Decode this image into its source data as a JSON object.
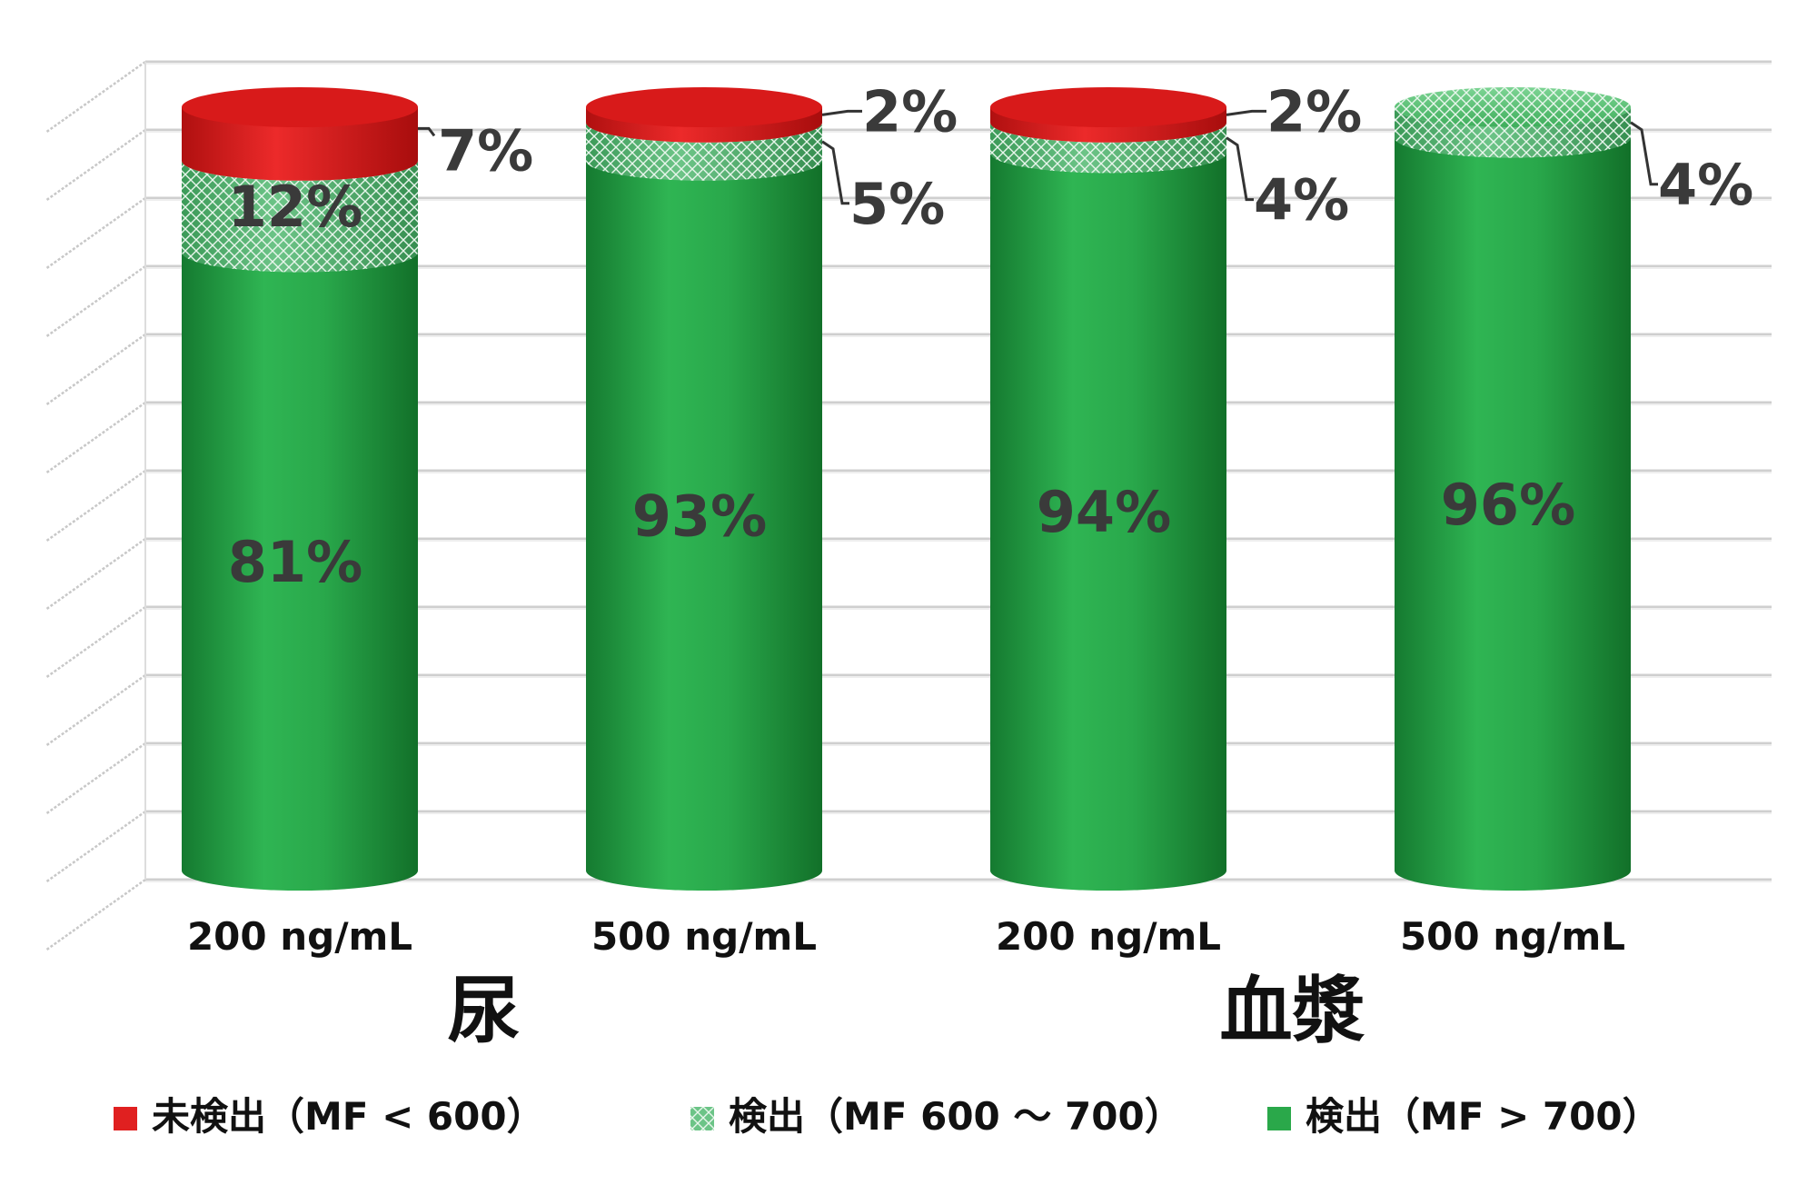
{
  "chart_data": {
    "type": "bar",
    "stacked": true,
    "categories": [
      "200 ng/mL",
      "500 ng/mL",
      "200 ng/mL",
      "500 ng/mL"
    ],
    "groups": [
      {
        "label": "尿",
        "categories": [
          0,
          1
        ]
      },
      {
        "label": "血漿",
        "categories": [
          2,
          3
        ]
      }
    ],
    "series": [
      {
        "name": "検出（MF > 700）",
        "color": "#2aa84a",
        "values": [
          81,
          93,
          94,
          96
        ],
        "labels": [
          "81%",
          "93%",
          "94%",
          "96%"
        ]
      },
      {
        "name": "検出（MF 600 ～ 700）",
        "color": "#7fcf95",
        "pattern": "crosshatch",
        "values": [
          12,
          5,
          4,
          4
        ],
        "labels": [
          "12%",
          "5%",
          "4%",
          "4%"
        ]
      },
      {
        "name": "未検出（MF < 600）",
        "color": "#e02020",
        "values": [
          7,
          2,
          2,
          0
        ],
        "labels": [
          "7%",
          "2%",
          "2%",
          ""
        ]
      }
    ],
    "ylim": [
      0,
      100
    ],
    "grid": true,
    "legend_position": "bottom"
  }
}
